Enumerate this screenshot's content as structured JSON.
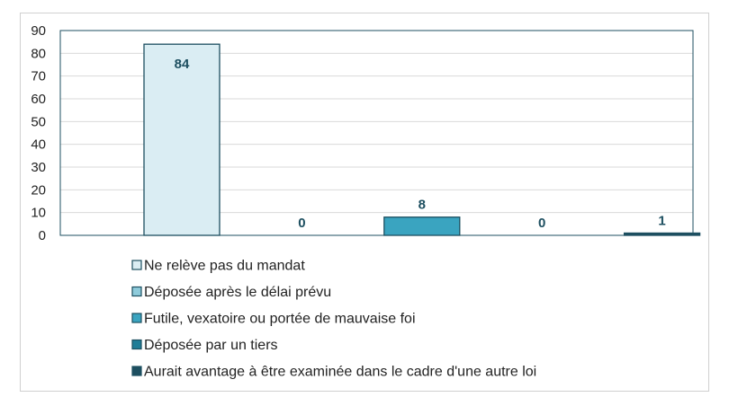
{
  "chart_data": {
    "type": "bar",
    "title": "",
    "xlabel": "",
    "ylabel": "",
    "ylim": [
      0,
      90
    ],
    "yticks": [
      0,
      10,
      20,
      30,
      40,
      50,
      60,
      70,
      80,
      90
    ],
    "grid": true,
    "legend_position": "bottom",
    "series": [
      {
        "name": "Ne relève pas du mandat",
        "value": 84,
        "color": "#daedf3",
        "border": "#1d4f60"
      },
      {
        "name": "Déposée après le délai prévu",
        "value": 0,
        "color": "#8ecbdb",
        "border": "#1d4f60"
      },
      {
        "name": "Futile, vexatoire ou portée de mauvaise foi",
        "value": 8,
        "color": "#3aa4c0",
        "border": "#1d4f60"
      },
      {
        "name": "Déposée par un tiers",
        "value": 0,
        "color": "#1f7d97",
        "border": "#1d4f60"
      },
      {
        "name": "Aurait avantage à être examinée dans le cadre d'une autre loi",
        "value": 1,
        "color": "#1d4f60",
        "border": "#1d4f60"
      }
    ]
  }
}
